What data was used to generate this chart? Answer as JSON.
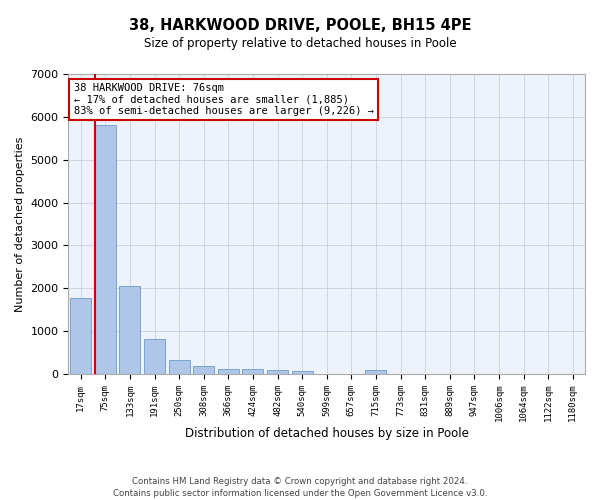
{
  "title1": "38, HARKWOOD DRIVE, POOLE, BH15 4PE",
  "title2": "Size of property relative to detached houses in Poole",
  "xlabel": "Distribution of detached houses by size in Poole",
  "ylabel": "Number of detached properties",
  "categories": [
    "17sqm",
    "75sqm",
    "133sqm",
    "191sqm",
    "250sqm",
    "308sqm",
    "366sqm",
    "424sqm",
    "482sqm",
    "540sqm",
    "599sqm",
    "657sqm",
    "715sqm",
    "773sqm",
    "831sqm",
    "889sqm",
    "947sqm",
    "1006sqm",
    "1064sqm",
    "1122sqm",
    "1180sqm"
  ],
  "values": [
    1780,
    5800,
    2060,
    820,
    340,
    190,
    120,
    110,
    100,
    80,
    0,
    0,
    100,
    0,
    0,
    0,
    0,
    0,
    0,
    0,
    0
  ],
  "bar_color": "#aec6e8",
  "bar_edge_color": "#5a8fc2",
  "highlight_index": 1,
  "highlight_line_color": "#cc0000",
  "annotation_line1": "38 HARKWOOD DRIVE: 76sqm",
  "annotation_line2": "← 17% of detached houses are smaller (1,885)",
  "annotation_line3": "83% of semi-detached houses are larger (9,226) →",
  "annotation_box_color": "#cc0000",
  "ylim": [
    0,
    7000
  ],
  "yticks": [
    0,
    1000,
    2000,
    3000,
    4000,
    5000,
    6000,
    7000
  ],
  "footer1": "Contains HM Land Registry data © Crown copyright and database right 2024.",
  "footer2": "Contains public sector information licensed under the Open Government Licence v3.0.",
  "bg_color": "#eef2fa",
  "grid_color": "#c8d0e0"
}
